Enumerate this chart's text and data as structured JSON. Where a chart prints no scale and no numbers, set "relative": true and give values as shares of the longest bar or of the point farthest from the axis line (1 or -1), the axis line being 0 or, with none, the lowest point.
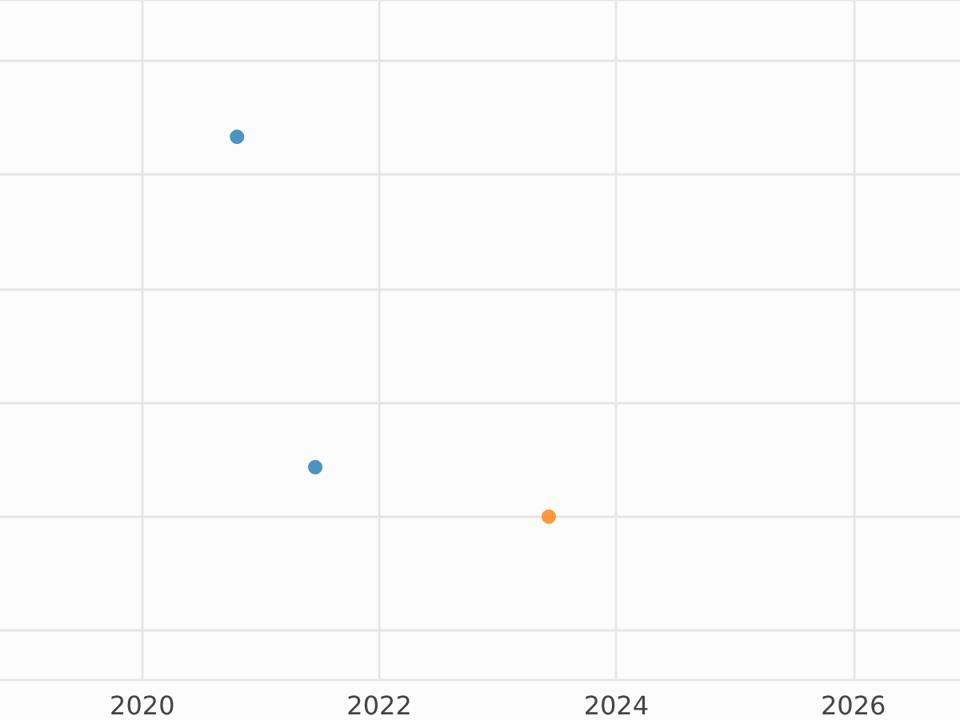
{
  "chart_data": {
    "type": "scatter",
    "relative": true,
    "xlim": [
      2018.8,
      2026.9
    ],
    "xticks": [
      2020,
      2022,
      2024,
      2026
    ],
    "series": [
      {
        "color": "#1f77b4",
        "x": [
          2020.8,
          2021.46
        ],
        "values": [
          1,
          0.13
        ]
      },
      {
        "color": "#ff7f0e",
        "x": [
          2023.43
        ],
        "values": [
          0
        ]
      }
    ],
    "grid": true,
    "tick_labels": "x",
    "marker": "circle"
  }
}
